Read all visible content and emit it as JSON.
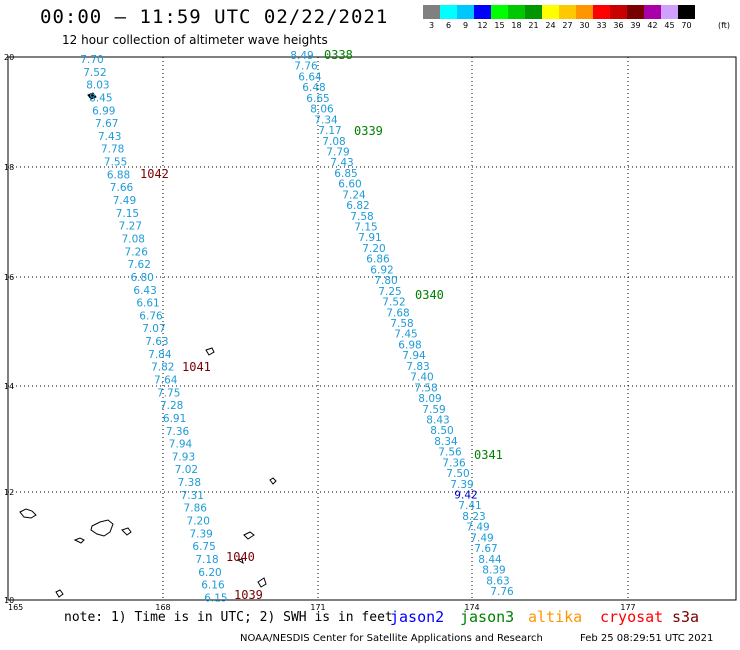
{
  "title": "00:00 — 11:59 UTC 02/22/2021",
  "subtitle": "12 hour collection of altimeter wave heights",
  "legend": {
    "labels": [
      "3",
      "6",
      "9",
      "12",
      "15",
      "18",
      "21",
      "24",
      "27",
      "30",
      "33",
      "36",
      "39",
      "42",
      "45",
      "70"
    ],
    "colors": [
      "#808080",
      "#00ffff",
      "#00c8ff",
      "#0000ff",
      "#00ff00",
      "#00c800",
      "#009600",
      "#ffff00",
      "#ffc800",
      "#ff9600",
      "#ff0000",
      "#c80000",
      "#780000",
      "#aa00aa",
      "#d0a0ff",
      "#000000"
    ],
    "unit": "(ft)"
  },
  "axes": {
    "lat_labels": [
      "20",
      "18",
      "16",
      "14",
      "12",
      "10"
    ],
    "lon_labels": [
      "165",
      "168",
      "171",
      "174",
      "177"
    ]
  },
  "tracks": [
    {
      "id": "track1",
      "color": "#1e9bd7",
      "values": [
        "7.70",
        "7.52",
        "8.03",
        "8.45",
        "6.99",
        "7.67",
        "7.43",
        "7.78",
        "7.55",
        "6.88",
        "7.66",
        "7.49",
        "7.15",
        "7.27",
        "7.08",
        "7.26",
        "7.62",
        "6.80",
        "6.43",
        "6.61",
        "6.76",
        "7.07",
        "7.63",
        "7.84",
        "7.82",
        "7.64",
        "7.75",
        "7.28",
        "6.91",
        "7.36",
        "7.94",
        "7.93",
        "7.02",
        "7.38",
        "7.31",
        "7.86",
        "7.20",
        "7.39",
        "6.75",
        "7.18",
        "6.20",
        "6.16",
        "6.15"
      ]
    },
    {
      "id": "track2",
      "color": "#1e9bd7",
      "values": [
        "8.49",
        "7.76",
        "6.64",
        "6.48",
        "6.65",
        "8.06",
        "7.34",
        "7.17",
        "7.08",
        "7.79",
        "7.43",
        "6.85",
        "6.60",
        "7.24",
        "6.82",
        "7.58",
        "7.15",
        "7.91",
        "7.20",
        "6.86",
        "6.92",
        "7.80",
        "7.25",
        "7.52",
        "7.68",
        "7.58",
        "7.45",
        "6.98",
        "7.94",
        "7.83",
        "7.40",
        "7.58",
        "8.09",
        "7.59",
        "8.43",
        "8.50",
        "8.34",
        "7.56",
        "7.36",
        "7.50",
        "7.39",
        "9.42",
        "7.41",
        "8.23",
        "7.49",
        "7.49",
        "7.67",
        "8.44",
        "8.39",
        "8.63",
        "7.76"
      ]
    }
  ],
  "pass_labels": [
    {
      "text": "0338",
      "color": "#008000"
    },
    {
      "text": "0339",
      "color": "#008000"
    },
    {
      "text": "0340",
      "color": "#008000"
    },
    {
      "text": "0341",
      "color": "#008000"
    },
    {
      "text": "1042",
      "color": "#780000"
    },
    {
      "text": "1041",
      "color": "#780000"
    },
    {
      "text": "1040",
      "color": "#780000"
    },
    {
      "text": "1039",
      "color": "#780000"
    }
  ],
  "footer": {
    "note": "note: 1) Time is in UTC; 2) SWH is in feet",
    "missions": [
      {
        "text": "jason2",
        "color": "#0000ff"
      },
      {
        "text": "jason3",
        "color": "#008000"
      },
      {
        "text": "altika",
        "color": "#ff9600"
      },
      {
        "text": "cryosat",
        "color": "#ff0000"
      },
      {
        "text": "s3a",
        "color": "#780000"
      }
    ],
    "credit": "NOAA/NESDIS Center for Satellite Applications and Research",
    "timestamp": "Feb 25 08:29:51 UTC 2021"
  }
}
